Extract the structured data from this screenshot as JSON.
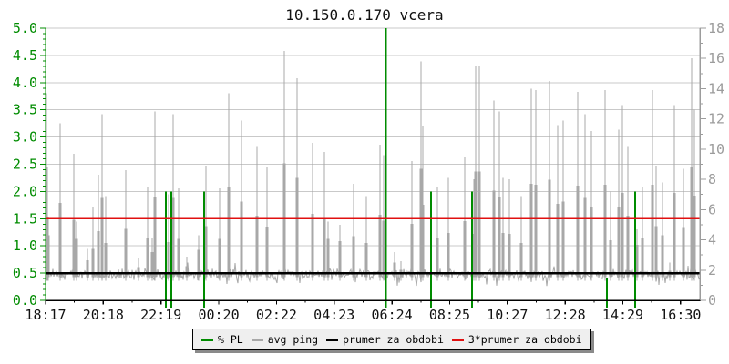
{
  "chart_data": {
    "type": "line",
    "title": "10.150.0.170 vcera",
    "x_axis": {
      "tick_labels": [
        "18:17",
        "20:18",
        "22:19",
        "00:20",
        "02:22",
        "04:23",
        "06:24",
        "08:25",
        "10:27",
        "12:28",
        "14:29",
        "16:30"
      ]
    },
    "y_left_axis": {
      "min": 0,
      "max": 5,
      "tick_labels": [
        "5.0",
        "4.5",
        "4.0",
        "3.5",
        "3.0",
        "2.5",
        "2.0",
        "1.5",
        "1.0",
        "0.5",
        "0.0"
      ],
      "color": "#008C00"
    },
    "y_right_axis": {
      "min": 0,
      "max": 18,
      "tick_labels": [
        "18",
        "16",
        "14",
        "12",
        "10",
        "8",
        "6",
        "4",
        "2",
        "0"
      ],
      "color": "#9C9C9C"
    },
    "grid": true,
    "grid_color": "#C9C9C9",
    "series": [
      {
        "name": "% PL",
        "style": "vertical-bars",
        "axis": "left",
        "color": "#008C00",
        "bars": [
          [
            182,
            2.0
          ],
          [
            188,
            2.0
          ],
          [
            224,
            2.0
          ],
          [
            423,
            5.0
          ],
          [
            473,
            2.0
          ],
          [
            518,
            2.0
          ],
          [
            666,
            0.4
          ],
          [
            697,
            2.0
          ]
        ]
      },
      {
        "name": "avg ping",
        "style": "noisy-line",
        "axis": "right",
        "color": "#A8A8A8",
        "baseline": {
          "mean": 1.72,
          "spread": 0.42,
          "seed": 20116
        },
        "spikes": [
          [
            51,
            13.7
          ],
          [
            52,
            8.8
          ],
          [
            53,
            5.5
          ],
          [
            66,
            11.7
          ],
          [
            81,
            9.7
          ],
          [
            84,
            5.2
          ],
          [
            96,
            3.4
          ],
          [
            102,
            6.2
          ],
          [
            108,
            8.3
          ],
          [
            112,
            12.3
          ],
          [
            116,
            6.9
          ],
          [
            138,
            8.6
          ],
          [
            152,
            2.8
          ],
          [
            162,
            7.5
          ],
          [
            167,
            4.1
          ],
          [
            170,
            12.5
          ],
          [
            185,
            7.0
          ],
          [
            190,
            12.3
          ],
          [
            196,
            7.4
          ],
          [
            205,
            2.9
          ],
          [
            218,
            4.3
          ],
          [
            226,
            8.9
          ],
          [
            241,
            7.4
          ],
          [
            251,
            13.7
          ],
          [
            265,
            11.9
          ],
          [
            282,
            10.2
          ],
          [
            293,
            8.8
          ],
          [
            312,
            16.5
          ],
          [
            326,
            14.7
          ],
          [
            343,
            10.4
          ],
          [
            356,
            9.8
          ],
          [
            360,
            5.2
          ],
          [
            373,
            5.0
          ],
          [
            388,
            7.7
          ],
          [
            402,
            6.9
          ],
          [
            417,
            10.3
          ],
          [
            421,
            9.6
          ],
          [
            433,
            3.2
          ],
          [
            440,
            2.6
          ],
          [
            452,
            9.2
          ],
          [
            462,
            15.8
          ],
          [
            464,
            11.5
          ],
          [
            480,
            7.5
          ],
          [
            492,
            8.1
          ],
          [
            510,
            9.5
          ],
          [
            520,
            8.0
          ],
          [
            522,
            15.5
          ],
          [
            526,
            15.5
          ],
          [
            542,
            13.2
          ],
          [
            548,
            12.5
          ],
          [
            552,
            8.1
          ],
          [
            559,
            8.0
          ],
          [
            572,
            6.9
          ],
          [
            583,
            14.0
          ],
          [
            588,
            13.9
          ],
          [
            603,
            14.5
          ],
          [
            612,
            11.6
          ],
          [
            618,
            11.9
          ],
          [
            634,
            13.8
          ],
          [
            642,
            12.3
          ],
          [
            649,
            11.2
          ],
          [
            664,
            13.9
          ],
          [
            670,
            7.2
          ],
          [
            679,
            11.3
          ],
          [
            683,
            12.9
          ],
          [
            689,
            10.2
          ],
          [
            699,
            4.7
          ],
          [
            705,
            7.5
          ],
          [
            716,
            13.9
          ],
          [
            720,
            8.9
          ],
          [
            727,
            7.8
          ],
          [
            735,
            2.5
          ],
          [
            740,
            12.9
          ],
          [
            750,
            8.7
          ],
          [
            759,
            16.0
          ],
          [
            762,
            12.6
          ]
        ]
      },
      {
        "name": "prumer za obdobi",
        "style": "hline",
        "axis": "right",
        "value": 1.8,
        "color": "#000000"
      },
      {
        "name": "3*prumer za obdobi",
        "style": "hline",
        "axis": "right",
        "value": 5.4,
        "color": "#E01010"
      }
    ],
    "legend": {
      "position": "bottom-center",
      "items": [
        {
          "label": "% PL",
          "color": "#008C00"
        },
        {
          "label": "avg ping",
          "color": "#A8A8A8"
        },
        {
          "label": "prumer za obdobi",
          "color": "#000000"
        },
        {
          "label": "3*prumer za obdobi",
          "color": "#E01010"
        }
      ]
    }
  }
}
